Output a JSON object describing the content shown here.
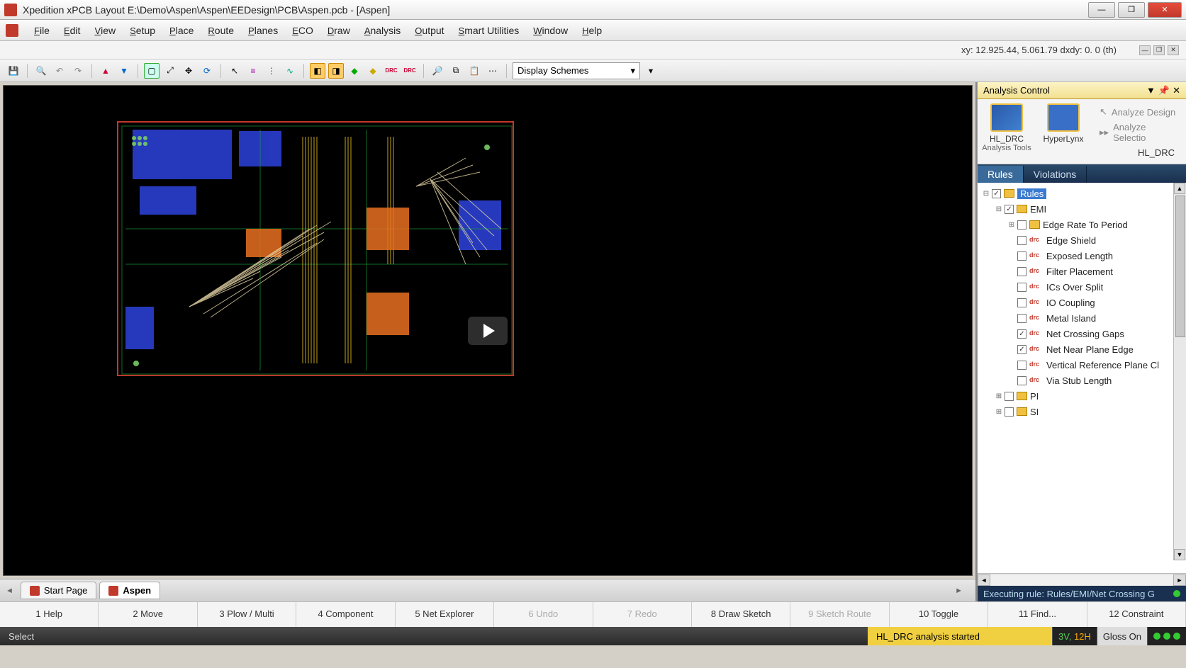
{
  "window": {
    "title": "Xpedition xPCB Layout  E:\\Demo\\Aspen\\Aspen\\EEDesign\\PCB\\Aspen.pcb - [Aspen]"
  },
  "menu": {
    "items": [
      "File",
      "Edit",
      "View",
      "Setup",
      "Place",
      "Route",
      "Planes",
      "ECO",
      "Draw",
      "Analysis",
      "Output",
      "Smart Utilities",
      "Window",
      "Help"
    ]
  },
  "coords": {
    "text": "xy: 12.925.44, 5.061.79   dxdy: 0. 0  (th)"
  },
  "toolbar": {
    "combo": "Display Schemes"
  },
  "docTabs": {
    "start": "Start Page",
    "aspen": "Aspen"
  },
  "panel": {
    "title": "Analysis Control",
    "tool1": "HL_DRC",
    "tool1sub": "Analysis Tools",
    "tool2": "HyperLynx",
    "action1": "Analyze Design",
    "action2": "Analyze Selectio",
    "hl": "HL_DRC",
    "tabRules": "Rules",
    "tabViolations": "Violations",
    "status": "Executing rule: Rules/EMI/Net Crossing G"
  },
  "tree": {
    "root": "Rules",
    "emi": "EMI",
    "items": [
      {
        "label": "Edge Rate To Period",
        "checked": false,
        "folder": true,
        "exp": true
      },
      {
        "label": "Edge Shield",
        "checked": false,
        "folder": false
      },
      {
        "label": "Exposed Length",
        "checked": false,
        "folder": false
      },
      {
        "label": "Filter Placement",
        "checked": false,
        "folder": false
      },
      {
        "label": "ICs Over Split",
        "checked": false,
        "folder": false
      },
      {
        "label": "IO Coupling",
        "checked": false,
        "folder": false
      },
      {
        "label": "Metal Island",
        "checked": false,
        "folder": false
      },
      {
        "label": "Net Crossing Gaps",
        "checked": true,
        "folder": false
      },
      {
        "label": "Net Near Plane Edge",
        "checked": true,
        "folder": false
      },
      {
        "label": "Vertical Reference Plane Cl",
        "checked": false,
        "folder": false
      },
      {
        "label": "Via Stub Length",
        "checked": false,
        "folder": false
      }
    ],
    "pi": "PI",
    "si": "SI"
  },
  "fnKeys": [
    {
      "label": "1 Help",
      "dis": false
    },
    {
      "label": "2 Move",
      "dis": false
    },
    {
      "label": "3 Plow / Multi",
      "dis": false
    },
    {
      "label": "4 Component",
      "dis": false
    },
    {
      "label": "5 Net Explorer",
      "dis": false
    },
    {
      "label": "6 Undo",
      "dis": true
    },
    {
      "label": "7 Redo",
      "dis": true
    },
    {
      "label": "8 Draw Sketch",
      "dis": false
    },
    {
      "label": "9 Sketch Route",
      "dis": true
    },
    {
      "label": "10 Toggle",
      "dis": false
    },
    {
      "label": "11 Find...",
      "dis": false
    },
    {
      "label": "12 Constraint",
      "dis": false
    }
  ],
  "status": {
    "mode": "Select",
    "msg": "HL_DRC analysis started",
    "chip1a": "3V,",
    "chip1b": "12H",
    "chip2": "Gloss On"
  }
}
